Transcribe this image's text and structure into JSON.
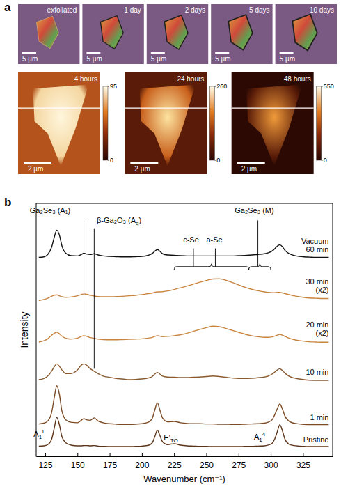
{
  "panel_a": {
    "label": "a",
    "optical": {
      "times": [
        "exfoliated",
        "1 day",
        "2 days",
        "5 days",
        "10 days"
      ],
      "scale_bar": "5 µm"
    },
    "afm": {
      "times": [
        "4 hours",
        "24 hours",
        "48 hours"
      ],
      "scale_bar": "2 µm",
      "colorbars": [
        {
          "range": [
            0,
            95
          ],
          "ticks": [
            0,
            95
          ]
        },
        {
          "range": [
            0,
            260
          ],
          "ticks": [
            0,
            260
          ]
        },
        {
          "range": [
            0,
            550
          ],
          "ticks": [
            0,
            550
          ]
        }
      ]
    }
  },
  "chart_data": {
    "label": "b",
    "type": "line",
    "x_label": "Wavenumber (cm⁻¹)",
    "y_label": "Intensity",
    "xlim": [
      118,
      348
    ],
    "xticks": [
      125,
      150,
      175,
      200,
      225,
      250,
      275,
      300,
      325
    ],
    "ylim": [
      0,
      104
    ],
    "yticks": [],
    "tick_labels": "x",
    "x": [
      120,
      124,
      127,
      130,
      132,
      134,
      136,
      138,
      141,
      145,
      150,
      153,
      155,
      157,
      160,
      163,
      166,
      170,
      175,
      180,
      185,
      190,
      195,
      200,
      205,
      208,
      210,
      212,
      214,
      216,
      220,
      225,
      230,
      235,
      240,
      245,
      250,
      255,
      260,
      265,
      270,
      275,
      280,
      285,
      290,
      295,
      298,
      301,
      303,
      305,
      307,
      309,
      311,
      314,
      318,
      322,
      326,
      330,
      335,
      340,
      345
    ],
    "series": [
      {
        "name": "Pristine",
        "color": "#5c3317",
        "values": [
          4.2,
          4.3,
          4.8,
          7,
          11.5,
          16,
          13,
          8,
          5.5,
          4.6,
          4.3,
          4.3,
          4.4,
          4.4,
          4.3,
          4.4,
          4.2,
          4.1,
          4,
          4,
          4,
          4,
          4.1,
          4.2,
          4.5,
          5.5,
          8,
          10.7,
          8.5,
          6,
          4.8,
          5.2,
          4.6,
          4.3,
          4.2,
          4.1,
          4.1,
          4,
          4,
          4,
          4,
          4,
          4.1,
          4.1,
          4.2,
          4.3,
          4.6,
          5.3,
          7,
          10,
          13,
          10.5,
          7,
          5,
          4.4,
          4.2,
          4.1,
          4,
          4,
          4,
          4
        ]
      },
      {
        "name": "1 min",
        "color": "#7b4a24",
        "values": [
          13.3,
          13.6,
          14.5,
          18,
          24,
          29,
          25.5,
          18.5,
          15,
          14,
          13.8,
          14.8,
          15.5,
          15,
          14.8,
          15.8,
          14.5,
          13.8,
          13.4,
          13.2,
          13.1,
          13.1,
          13.2,
          13.4,
          14,
          15.5,
          19,
          22,
          19,
          15.8,
          14.2,
          14.3,
          13.8,
          13.5,
          13.4,
          13.4,
          13.3,
          13.3,
          13.2,
          13.2,
          13.1,
          13.1,
          13.2,
          13.3,
          13.4,
          13.6,
          14,
          15,
          17,
          19.5,
          21.5,
          19.5,
          16.5,
          14.5,
          13.6,
          13.3,
          13.1,
          13,
          13,
          13,
          13
        ]
      },
      {
        "name": "10 min",
        "color": "#8a5a2e",
        "values": [
          31.5,
          32,
          33,
          35,
          36.8,
          38,
          37,
          35.5,
          34,
          34,
          35.5,
          37.5,
          38,
          37.5,
          36,
          35,
          34,
          33,
          32.5,
          32,
          31.8,
          31.5,
          31.6,
          31.8,
          32.2,
          32.8,
          33.8,
          34.5,
          33.8,
          33,
          32.6,
          32.5,
          32.4,
          32.4,
          32.5,
          32.6,
          32.8,
          33,
          32.8,
          32.5,
          32.2,
          32,
          32,
          32.1,
          32.3,
          32.6,
          33,
          33.8,
          34.6,
          35.5,
          36,
          35.3,
          34.2,
          33,
          32.2,
          31.8,
          31.5,
          31.3,
          31.2,
          31.2,
          31.2
        ]
      },
      {
        "name": "20 min\n(x2)",
        "color": "#c8843f",
        "values": [
          47,
          47.5,
          48.3,
          49.8,
          50.6,
          51,
          50.4,
          49.4,
          48.5,
          48.2,
          48.6,
          49.3,
          49.6,
          49.4,
          48.8,
          48.5,
          48.2,
          48,
          47.9,
          47.9,
          48,
          48.1,
          48.2,
          48.3,
          48.6,
          48.9,
          49.3,
          49.6,
          49.4,
          49.2,
          49.3,
          49.6,
          50,
          50.6,
          51.4,
          52.2,
          52.9,
          53.5,
          53.3,
          52.6,
          51.8,
          51,
          50.2,
          49.6,
          49.2,
          48.9,
          48.9,
          49.1,
          49.4,
          49.8,
          50.1,
          49.8,
          49.3,
          48.6,
          48,
          47.6,
          47.3,
          47.1,
          47,
          46.9,
          46.9
        ]
      },
      {
        "name": "30 min\n(x2)",
        "color": "#c8843f",
        "values": [
          64,
          64.5,
          65,
          65.8,
          66.2,
          66.4,
          66,
          65.6,
          65.4,
          65.5,
          66,
          66.5,
          66.8,
          66.6,
          66.2,
          65.9,
          65.7,
          65.6,
          65.6,
          65.7,
          65.8,
          66,
          66.2,
          66.5,
          66.9,
          67.1,
          67.4,
          67.6,
          67.6,
          67.7,
          68,
          68.6,
          69.3,
          70,
          70.8,
          71.6,
          72.3,
          72.9,
          73,
          72.4,
          71.5,
          70.5,
          69.5,
          68.7,
          68.1,
          67.6,
          67.4,
          67.3,
          67.3,
          67.4,
          67.4,
          67.2,
          66.9,
          66.5,
          66,
          65.6,
          65.3,
          65.1,
          65,
          64.9,
          64.9
        ]
      },
      {
        "name": "Vacuum\n60 min",
        "color": "#111111",
        "values": [
          81.8,
          82,
          83,
          86,
          90,
          93,
          91,
          86.5,
          83.5,
          82.5,
          82.4,
          83,
          83.5,
          83.2,
          83,
          83.3,
          82.8,
          82.4,
          82.2,
          82.1,
          82,
          82,
          82.1,
          82.2,
          82.7,
          83.4,
          84.3,
          85,
          84.3,
          83.3,
          82.8,
          82.7,
          82.5,
          82.4,
          82.4,
          82.4,
          82.4,
          82.4,
          82.4,
          82.4,
          82.4,
          82.5,
          82.6,
          82.8,
          83,
          83.3,
          83.7,
          84.4,
          85.3,
          86.4,
          87,
          86.2,
          84.7,
          83.4,
          82.6,
          82.2,
          82,
          81.9,
          81.8,
          81.8,
          81.8
        ]
      }
    ],
    "annotations": [
      {
        "text": "Ga₂Se₃ (A₁)",
        "x": 113,
        "y": 100
      },
      {
        "text": "β-Ga₂O₃ (A",
        "sub": "g",
        "after": ")",
        "x": 165,
        "y": 96
      },
      {
        "text": "c-Se",
        "x": 232,
        "y": 88
      },
      {
        "text": "a-Se",
        "x": 250,
        "y": 88
      },
      {
        "text": "Ga₂Se₃ (M)",
        "x": 272,
        "y": 100
      },
      {
        "text": "A",
        "sub": "1",
        "sup": "1",
        "x": 116,
        "y": 8
      },
      {
        "text": "E′",
        "sub": "TO",
        "x": 217,
        "y": 6.5
      },
      {
        "text": "A",
        "sub": "1",
        "sup": "4",
        "x": 287,
        "y": 7
      }
    ],
    "markers": [
      {
        "x": 155,
        "y": [
          36,
          97
        ]
      },
      {
        "x": 163,
        "y": [
          36,
          93.5
        ]
      },
      {
        "x": 240,
        "y": [
          78,
          85.5
        ]
      },
      {
        "x": 257,
        "y": [
          78,
          85.5
        ]
      },
      {
        "x": 290,
        "y": [
          78,
          97
        ]
      }
    ],
    "braces": [
      {
        "x": [
          225,
          283
        ],
        "y": 78
      },
      {
        "x": [
          283,
          300
        ],
        "y": 78
      }
    ]
  }
}
